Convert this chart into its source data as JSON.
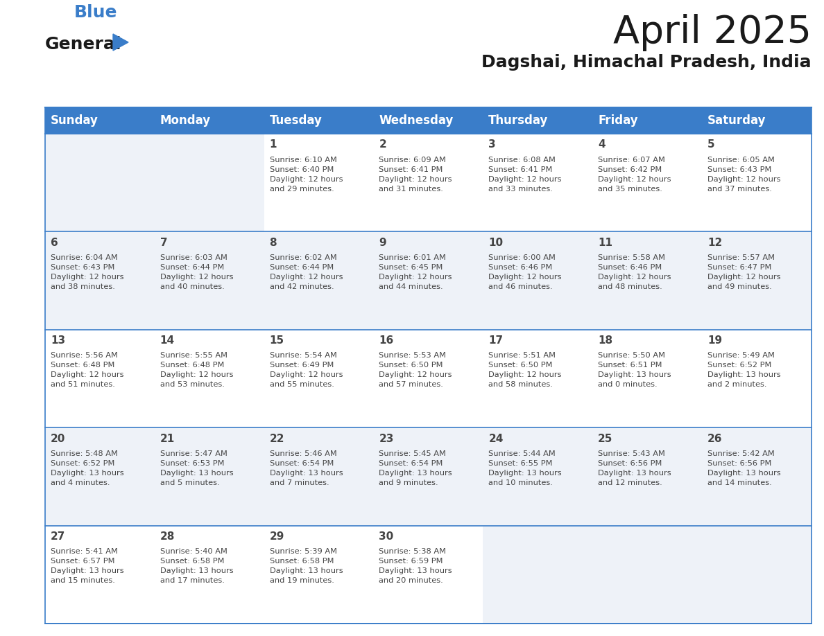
{
  "title": "April 2025",
  "subtitle": "Dagshai, Himachal Pradesh, India",
  "header_color": "#3A7DC9",
  "header_text_color": "#FFFFFF",
  "cell_bg_white": "#FFFFFF",
  "cell_bg_gray": "#EEF2F8",
  "border_color": "#3A7DC9",
  "text_color": "#444444",
  "days_of_week": [
    "Sunday",
    "Monday",
    "Tuesday",
    "Wednesday",
    "Thursday",
    "Friday",
    "Saturday"
  ],
  "calendar_data": [
    [
      {
        "day": "",
        "info": ""
      },
      {
        "day": "",
        "info": ""
      },
      {
        "day": "1",
        "info": "Sunrise: 6:10 AM\nSunset: 6:40 PM\nDaylight: 12 hours\nand 29 minutes."
      },
      {
        "day": "2",
        "info": "Sunrise: 6:09 AM\nSunset: 6:41 PM\nDaylight: 12 hours\nand 31 minutes."
      },
      {
        "day": "3",
        "info": "Sunrise: 6:08 AM\nSunset: 6:41 PM\nDaylight: 12 hours\nand 33 minutes."
      },
      {
        "day": "4",
        "info": "Sunrise: 6:07 AM\nSunset: 6:42 PM\nDaylight: 12 hours\nand 35 minutes."
      },
      {
        "day": "5",
        "info": "Sunrise: 6:05 AM\nSunset: 6:43 PM\nDaylight: 12 hours\nand 37 minutes."
      }
    ],
    [
      {
        "day": "6",
        "info": "Sunrise: 6:04 AM\nSunset: 6:43 PM\nDaylight: 12 hours\nand 38 minutes."
      },
      {
        "day": "7",
        "info": "Sunrise: 6:03 AM\nSunset: 6:44 PM\nDaylight: 12 hours\nand 40 minutes."
      },
      {
        "day": "8",
        "info": "Sunrise: 6:02 AM\nSunset: 6:44 PM\nDaylight: 12 hours\nand 42 minutes."
      },
      {
        "day": "9",
        "info": "Sunrise: 6:01 AM\nSunset: 6:45 PM\nDaylight: 12 hours\nand 44 minutes."
      },
      {
        "day": "10",
        "info": "Sunrise: 6:00 AM\nSunset: 6:46 PM\nDaylight: 12 hours\nand 46 minutes."
      },
      {
        "day": "11",
        "info": "Sunrise: 5:58 AM\nSunset: 6:46 PM\nDaylight: 12 hours\nand 48 minutes."
      },
      {
        "day": "12",
        "info": "Sunrise: 5:57 AM\nSunset: 6:47 PM\nDaylight: 12 hours\nand 49 minutes."
      }
    ],
    [
      {
        "day": "13",
        "info": "Sunrise: 5:56 AM\nSunset: 6:48 PM\nDaylight: 12 hours\nand 51 minutes."
      },
      {
        "day": "14",
        "info": "Sunrise: 5:55 AM\nSunset: 6:48 PM\nDaylight: 12 hours\nand 53 minutes."
      },
      {
        "day": "15",
        "info": "Sunrise: 5:54 AM\nSunset: 6:49 PM\nDaylight: 12 hours\nand 55 minutes."
      },
      {
        "day": "16",
        "info": "Sunrise: 5:53 AM\nSunset: 6:50 PM\nDaylight: 12 hours\nand 57 minutes."
      },
      {
        "day": "17",
        "info": "Sunrise: 5:51 AM\nSunset: 6:50 PM\nDaylight: 12 hours\nand 58 minutes."
      },
      {
        "day": "18",
        "info": "Sunrise: 5:50 AM\nSunset: 6:51 PM\nDaylight: 13 hours\nand 0 minutes."
      },
      {
        "day": "19",
        "info": "Sunrise: 5:49 AM\nSunset: 6:52 PM\nDaylight: 13 hours\nand 2 minutes."
      }
    ],
    [
      {
        "day": "20",
        "info": "Sunrise: 5:48 AM\nSunset: 6:52 PM\nDaylight: 13 hours\nand 4 minutes."
      },
      {
        "day": "21",
        "info": "Sunrise: 5:47 AM\nSunset: 6:53 PM\nDaylight: 13 hours\nand 5 minutes."
      },
      {
        "day": "22",
        "info": "Sunrise: 5:46 AM\nSunset: 6:54 PM\nDaylight: 13 hours\nand 7 minutes."
      },
      {
        "day": "23",
        "info": "Sunrise: 5:45 AM\nSunset: 6:54 PM\nDaylight: 13 hours\nand 9 minutes."
      },
      {
        "day": "24",
        "info": "Sunrise: 5:44 AM\nSunset: 6:55 PM\nDaylight: 13 hours\nand 10 minutes."
      },
      {
        "day": "25",
        "info": "Sunrise: 5:43 AM\nSunset: 6:56 PM\nDaylight: 13 hours\nand 12 minutes."
      },
      {
        "day": "26",
        "info": "Sunrise: 5:42 AM\nSunset: 6:56 PM\nDaylight: 13 hours\nand 14 minutes."
      }
    ],
    [
      {
        "day": "27",
        "info": "Sunrise: 5:41 AM\nSunset: 6:57 PM\nDaylight: 13 hours\nand 15 minutes."
      },
      {
        "day": "28",
        "info": "Sunrise: 5:40 AM\nSunset: 6:58 PM\nDaylight: 13 hours\nand 17 minutes."
      },
      {
        "day": "29",
        "info": "Sunrise: 5:39 AM\nSunset: 6:58 PM\nDaylight: 13 hours\nand 19 minutes."
      },
      {
        "day": "30",
        "info": "Sunrise: 5:38 AM\nSunset: 6:59 PM\nDaylight: 13 hours\nand 20 minutes."
      },
      {
        "day": "",
        "info": ""
      },
      {
        "day": "",
        "info": ""
      },
      {
        "day": "",
        "info": ""
      }
    ]
  ],
  "logo_text_general": "General",
  "logo_text_blue": "Blue",
  "logo_color_general": "#1a1a1a",
  "logo_color_blue": "#3A7DC9",
  "logo_triangle_color": "#3A7DC9",
  "title_fontsize": 40,
  "subtitle_fontsize": 18,
  "header_fontsize": 12,
  "day_num_fontsize": 11,
  "info_fontsize": 8.2
}
